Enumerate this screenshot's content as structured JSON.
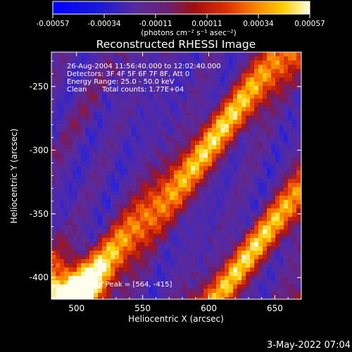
{
  "colorbar": {
    "ticks": [
      "-0.00057",
      "-0.00034",
      "-0.00011",
      "0.00011",
      "0.00034",
      "0.00057"
    ],
    "unit_label": "(photons cm⁻² s⁻¹ asec⁻²)"
  },
  "plot": {
    "title": "Reconstructed RHESSI Image",
    "xlabel": "Heliocentric X (arcsec)",
    "ylabel": "Heliocentric Y (arcsec)",
    "x_ticks": [
      "500",
      "550",
      "600",
      "650"
    ],
    "y_ticks": [
      "-250",
      "-300",
      "-350",
      "-400"
    ]
  },
  "info": {
    "line1": "26-Aug-2004 11:56:40.000 to 12:02:40.000",
    "line2": "Detectors: 3F 4F 5F 6F 7F 8F, Att 0",
    "line3": "Energy Range: 25.0 - 50.0 keV",
    "line4_method": "Clean",
    "line4_counts": "Total counts: 1.77E+04",
    "peak": "Position of Peak = [564, -415]"
  },
  "timestamp": "3-May-2022 07:04",
  "colors": {
    "background": "#000000",
    "foreground": "#ffffff",
    "map_purple": "#5a2a9a"
  },
  "chart_data": {
    "type": "heatmap",
    "title": "Reconstructed RHESSI Image",
    "xlabel": "Heliocentric X (arcsec)",
    "ylabel": "Heliocentric Y (arcsec)",
    "xlim": [
      481,
      670
    ],
    "ylim": [
      -417,
      -223
    ],
    "color_range": [
      -0.00057,
      0.00057
    ],
    "colormap": "blue-purple-red-yellow-white",
    "grid": false
  }
}
